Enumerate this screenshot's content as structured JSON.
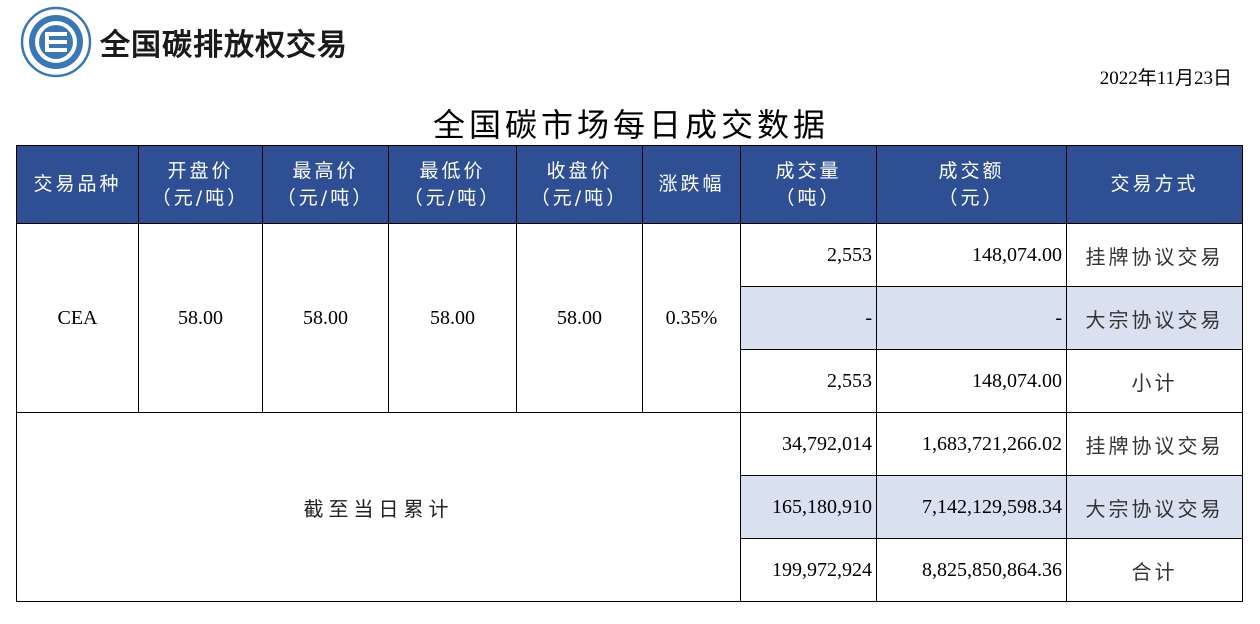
{
  "header": {
    "org_name": "全国碳排放权交易",
    "logo_icon": "national-carbon-trading-logo",
    "logo_color": "#3a78b5"
  },
  "date": "2022年11月23日",
  "title": "全国碳市场每日成交数据",
  "table": {
    "header_bg": "#2f4f95",
    "highlight_bg": "#d9e0f0",
    "columns": [
      {
        "line1": "交易品种",
        "line2": ""
      },
      {
        "line1": "开盘价",
        "line2": "（元/吨）"
      },
      {
        "line1": "最高价",
        "line2": "（元/吨）"
      },
      {
        "line1": "最低价",
        "line2": "（元/吨）"
      },
      {
        "line1": "收盘价",
        "line2": "（元/吨）"
      },
      {
        "line1": "涨跌幅",
        "line2": ""
      },
      {
        "line1": "成交量",
        "line2": "（吨）"
      },
      {
        "line1": "成交额",
        "line2": "（元）"
      },
      {
        "line1": "交易方式",
        "line2": ""
      }
    ],
    "daily": {
      "product": "CEA",
      "open": "58.00",
      "high": "58.00",
      "low": "58.00",
      "close": "58.00",
      "change": "0.35%",
      "rows": [
        {
          "volume": "2,553",
          "amount": "148,074.00",
          "mode": "挂牌协议交易"
        },
        {
          "volume": "-",
          "amount": "-",
          "mode": "大宗协议交易"
        },
        {
          "volume": "2,553",
          "amount": "148,074.00",
          "mode": "小计"
        }
      ]
    },
    "cumulative": {
      "label": "截至当日累计",
      "rows": [
        {
          "volume": "34,792,014",
          "amount": "1,683,721,266.02",
          "mode": "挂牌协议交易"
        },
        {
          "volume": "165,180,910",
          "amount": "7,142,129,598.34",
          "mode": "大宗协议交易"
        },
        {
          "volume": "199,972,924",
          "amount": "8,825,850,864.36",
          "mode": "合计"
        }
      ]
    }
  }
}
